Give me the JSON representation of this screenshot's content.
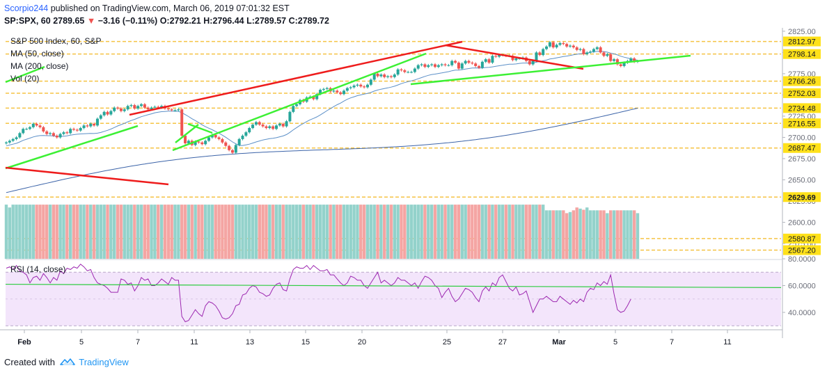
{
  "header": {
    "author": "Scorpio244",
    "published_text": "published on TradingView.com, March 06, 2019 07:01:32 EST",
    "symbol_line": "SP:SPX, 60",
    "last": "2789.65",
    "change": "−3.16 (−0.11%)",
    "open": "O:2792.21",
    "high": "H:2796.44",
    "low": "L:2789.57",
    "close": "C:2789.72"
  },
  "legend": {
    "title": "S&P 500 Index, 60, S&P",
    "ma50": "MA (50, close)",
    "ma200": "MA (200, close)",
    "vol": "Vol (20)",
    "rsi": "RSI (14, close)"
  },
  "footer": {
    "created_with": "Created with",
    "brand": "TradingView"
  },
  "colors": {
    "up": "#26a69a",
    "down": "#ef5350",
    "ma50": "#5b8fc7",
    "ma200": "#3b63a8",
    "trend_green": "#3cf034",
    "trend_red": "#ee1c1c",
    "level_line": "#f5c343",
    "level_label_bg": "#ffe11a",
    "rsi_line": "#9c27b0",
    "rsi_fill": "#f3e5fb",
    "rsi_trend": "#2ecc40"
  },
  "chart_data": {
    "type": "candlestick",
    "price_axis": {
      "ticks": [
        "2825.00",
        "2800.00",
        "2775.00",
        "2750.00",
        "2725.00",
        "2700.00",
        "2675.00",
        "2650.00",
        "2625.00",
        "2600.00",
        "2575.00"
      ],
      "range": [
        2557,
        2829
      ]
    },
    "levels": [
      2812.97,
      2798.14,
      2766.26,
      2752.03,
      2734.48,
      2716.55,
      2687.47,
      2629.69,
      2580.87,
      2567.2
    ],
    "highlight_level": 2629.69,
    "x_ticks": [
      "Feb",
      "5",
      "7",
      "11",
      "13",
      "15",
      "20",
      "25",
      "27",
      "Mar",
      "5",
      "7",
      "11"
    ],
    "bar_count": 186,
    "closes": [
      2694,
      2696,
      2698,
      2700,
      2705,
      2710,
      2710,
      2712,
      2716,
      2714,
      2712,
      2707,
      2704,
      2705,
      2702,
      2700,
      2704,
      2706,
      2705,
      2710,
      2709,
      2708,
      2711,
      2714,
      2713,
      2716,
      2714,
      2722,
      2726,
      2730,
      2727,
      2731,
      2735,
      2734,
      2731,
      2733,
      2737,
      2738,
      2734,
      2737,
      2739,
      2735,
      2733,
      2735,
      2736,
      2735,
      2737,
      2734,
      2733,
      2732,
      2732,
      2733,
      2702,
      2693,
      2696,
      2691,
      2695,
      2694,
      2692,
      2696,
      2700,
      2703,
      2700,
      2698,
      2694,
      2690,
      2685,
      2682,
      2691,
      2698,
      2702,
      2706,
      2711,
      2715,
      2718,
      2715,
      2713,
      2711,
      2713,
      2710,
      2714,
      2716,
      2713,
      2719,
      2730,
      2737,
      2739,
      2744,
      2742,
      2747,
      2748,
      2745,
      2751,
      2756,
      2757,
      2758,
      2754,
      2755,
      2753,
      2751,
      2755,
      2758,
      2759,
      2761,
      2762,
      2760,
      2759,
      2762,
      2768,
      2775,
      2772,
      2774,
      2771,
      2772,
      2771,
      2774,
      2780,
      2779,
      2777,
      2777,
      2777,
      2781,
      2785,
      2786,
      2783,
      2785,
      2786,
      2783,
      2785,
      2786,
      2785,
      2785,
      2790,
      2788,
      2781,
      2787,
      2790,
      2788,
      2787,
      2784,
      2782,
      2789,
      2792,
      2788,
      2796,
      2795,
      2797,
      2797,
      2796,
      2796,
      2791,
      2793,
      2793,
      2794,
      2790,
      2786,
      2790,
      2800,
      2797,
      2804,
      2807,
      2812,
      2806,
      2809,
      2811,
      2810,
      2807,
      2808,
      2806,
      2803,
      2804,
      2798,
      2800,
      2801,
      2804,
      2806,
      2800,
      2796,
      2798,
      2790,
      2792,
      2786,
      2784,
      2788,
      2790,
      2793,
      2789,
      2789.7
    ],
    "volume_rel": [
      0.95,
      0.9,
      0.95,
      0.95,
      0.95,
      0.95,
      0.95,
      0.95,
      0.95,
      0.95,
      0.95,
      0.95,
      0.95,
      0.95,
      0.95,
      0.95,
      0.95,
      0.95,
      0.95,
      0.95,
      0.95,
      0.95,
      0.95,
      0.95,
      0.95,
      0.95,
      0.95,
      0.95,
      0.95,
      0.95,
      0.95,
      0.95,
      0.95,
      0.95,
      0.95,
      0.95,
      0.95,
      0.95,
      0.95,
      0.95,
      0.95,
      0.95,
      0.95,
      0.95,
      0.95,
      0.95,
      0.95,
      0.95,
      0.95,
      0.95,
      0.95,
      0.95,
      0.95,
      0.95,
      0.95,
      0.95,
      0.95,
      0.95,
      0.95,
      0.95,
      0.95,
      0.95,
      0.95,
      0.95,
      0.95,
      0.95,
      0.95,
      0.95,
      0.95,
      0.95,
      0.95,
      0.95,
      0.95,
      0.95,
      0.95,
      0.95,
      0.95,
      0.95,
      0.95,
      0.95,
      0.95,
      0.95,
      0.95,
      0.95,
      0.95,
      0.95,
      0.95,
      0.95,
      0.95,
      0.95,
      0.95,
      0.95,
      0.95,
      0.95,
      0.95,
      0.95,
      0.95,
      0.95,
      0.95,
      0.95,
      0.95,
      0.95,
      0.95,
      0.95,
      0.95,
      0.95,
      0.95,
      0.95,
      0.95,
      0.95,
      0.95,
      0.95,
      0.95,
      0.95,
      0.95,
      0.95,
      0.95,
      0.95,
      0.95,
      0.95,
      0.95,
      0.95,
      0.95,
      0.95,
      0.95,
      0.95,
      0.95,
      0.95,
      0.95,
      0.95,
      0.95,
      0.95,
      0.95,
      0.95,
      0.95,
      0.95,
      0.95,
      0.95,
      0.95,
      0.95,
      0.95,
      0.95,
      0.95,
      0.95,
      0.95,
      0.95,
      0.95,
      0.95,
      0.95,
      0.95,
      0.95,
      0.95,
      0.95,
      0.95,
      0.95,
      0.95,
      0.95,
      0.95,
      0.95,
      0.95,
      0.85,
      0.85,
      0.85,
      0.85,
      0.85,
      0.85,
      0.8,
      0.82,
      0.85,
      0.9,
      0.88,
      0.86,
      0.9,
      0.85,
      0.85,
      0.85,
      0.85,
      0.85,
      0.8,
      0.85,
      0.85,
      0.85,
      0.85,
      0.85,
      0.85,
      0.85,
      0.85,
      0.8,
      0.8,
      0.8,
      0.45,
      0.45
    ],
    "rsi_axis": {
      "ticks": [
        "80.0000",
        "60.0000",
        "40.0000"
      ],
      "bands": [
        30,
        70
      ]
    },
    "rsi": [
      73,
      74,
      72,
      75,
      71,
      70,
      68,
      62,
      66,
      67,
      64,
      69,
      66,
      62,
      66,
      64,
      71,
      69,
      73,
      72,
      74,
      73,
      76,
      74,
      71,
      72,
      66,
      62,
      61,
      60,
      58,
      55,
      55,
      55,
      65,
      64,
      61,
      62,
      56,
      60,
      66,
      64,
      65,
      60,
      60,
      62,
      65,
      63,
      61,
      66,
      64,
      64,
      37,
      33,
      34,
      38,
      42,
      39,
      37,
      45,
      48,
      47,
      45,
      41,
      36,
      35,
      36,
      39,
      45,
      46,
      53,
      54,
      58,
      60,
      59,
      55,
      54,
      52,
      53,
      58,
      61,
      62,
      57,
      56,
      65,
      72,
      74,
      73,
      73,
      75,
      72,
      75,
      73,
      71,
      71,
      72,
      68,
      68,
      65,
      62,
      60,
      62,
      67,
      66,
      64,
      64,
      60,
      58,
      62,
      66,
      70,
      62,
      64,
      62,
      60,
      62,
      66,
      64,
      64,
      62,
      60,
      62,
      58,
      63,
      67,
      66,
      64,
      60,
      58,
      51,
      55,
      58,
      52,
      48,
      50,
      54,
      58,
      57,
      55,
      51,
      48,
      56,
      59,
      56,
      62,
      60,
      66,
      68,
      63,
      58,
      56,
      59,
      53,
      54,
      56,
      48,
      40,
      45,
      50,
      50,
      52,
      50,
      48,
      48,
      52,
      50,
      48,
      46,
      49,
      47,
      50,
      48,
      55,
      58,
      57,
      62,
      60,
      63,
      61,
      68,
      54,
      42,
      40,
      41,
      45,
      50
    ],
    "rsi_trend_start": 61,
    "rsi_trend_end": 58.5
  }
}
